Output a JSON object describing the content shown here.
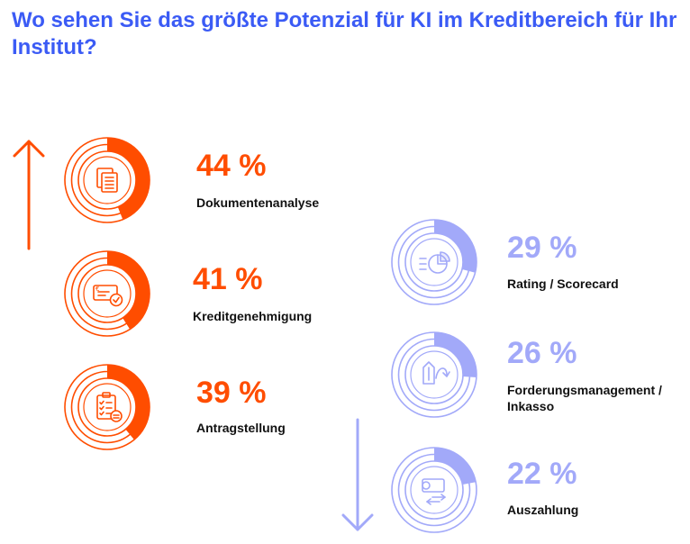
{
  "title": "Wo sehen Sie das größte Potenzial für KI im Kreditbereich für Ihr Institut?",
  "colors": {
    "title": "#3B5BF5",
    "orange": "#FF4D00",
    "lavender": "#A2A9F9",
    "track_orange_inner": "#FFFFFF"
  },
  "chart_data": {
    "type": "donut",
    "unit": "%",
    "items": [
      {
        "label": "Dokumentenanalyse",
        "value": 44,
        "value_label": "44 %",
        "group": "high",
        "icon": "documents-icon"
      },
      {
        "label": "Kreditgenehmigung",
        "value": 41,
        "value_label": "41 %",
        "group": "high",
        "icon": "check-card-icon"
      },
      {
        "label": "Antragstellung",
        "value": 39,
        "value_label": "39 %",
        "group": "high",
        "icon": "clipboard-icon"
      },
      {
        "label": "Rating / Scorecard",
        "value": 29,
        "value_label": "29 %",
        "group": "low",
        "icon": "pie-chart-icon"
      },
      {
        "label": "Forderungsmanagement / Inkasso",
        "value": 26,
        "value_label": "26 %",
        "group": "low",
        "icon": "cycle-arrows-icon"
      },
      {
        "label": "Auszahlung",
        "value": 22,
        "value_label": "22 %",
        "group": "low",
        "icon": "payment-transfer-icon"
      }
    ],
    "arrows": [
      {
        "direction": "up",
        "group": "high"
      },
      {
        "direction": "down",
        "group": "low"
      }
    ]
  }
}
